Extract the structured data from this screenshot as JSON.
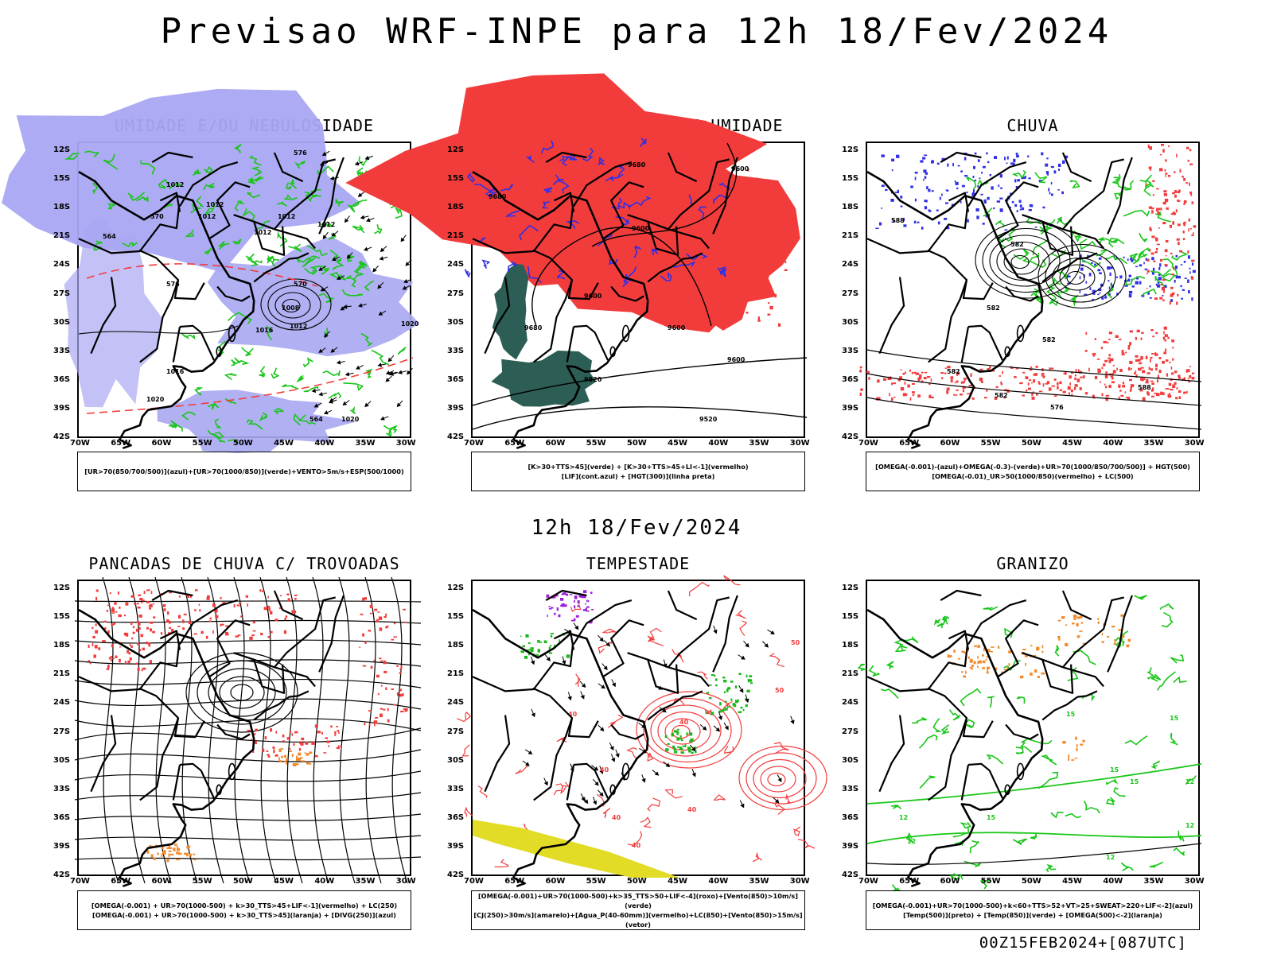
{
  "header": {
    "title": "Previsao WRF-INPE  para 12h 18/Fev/2024"
  },
  "middle": {
    "title": "12h 18/Fev/2024"
  },
  "footer": {
    "stamp": "00Z15FEB2024+[087UTC]"
  },
  "axes": {
    "lat_labels": [
      "12S",
      "15S",
      "18S",
      "21S",
      "24S",
      "27S",
      "30S",
      "33S",
      "36S",
      "39S",
      "42S"
    ],
    "lon_labels": [
      "70W",
      "65W",
      "60W",
      "55W",
      "50W",
      "45W",
      "40W",
      "35W",
      "30W"
    ]
  },
  "colors": {
    "humid_fill": "#a9a7f2",
    "green": "#19c619",
    "red": "#f23c3c",
    "blue": "#2f2fe6",
    "dark_teal": "#2d5e55",
    "orange": "#f08a2a",
    "purple": "#9b1fd8",
    "yellow": "#e3dc27"
  },
  "panels": [
    {
      "title": "UMIDADE E/OU NEBULOSIDADE",
      "legend": [
        "[UR>70(850/700/500)](azul)+[UR>70(1000/850)](verde)+VENTO>5m/s+ESP(500/1000)"
      ],
      "contour_labels": [
        "1012",
        "1012",
        "1012",
        "1012",
        "1012",
        "1012",
        "1008",
        "1012",
        "1016",
        "1020",
        "1016",
        "1020",
        "1020",
        "576",
        "576",
        "570",
        "570",
        "564",
        "564"
      ]
    },
    {
      "title": "PANCADAS POR CALOR E UMIDADE",
      "legend": [
        "[K>30+TTS>45](verde) + [K>30+TTS>45+LI<-1](vermelho)",
        "[LIF](cont.azul) + [HGT(300)](linha preta)"
      ],
      "contour_labels": [
        "9680",
        "9680",
        "9680",
        "9600",
        "9600",
        "9600",
        "9600",
        "9600",
        "9520",
        "9520"
      ]
    },
    {
      "title": "CHUVA",
      "legend": [
        "[OMEGA(-0.001)-(azul)+OMEGA(-0.3)-(verde)+UR>70(1000/850/700/500)] + HGT(500)",
        "[OMEGA(-0.01)_UR>50(1000/850)(vermelho) + LC(500)"
      ],
      "contour_labels": [
        "588",
        "582",
        "582",
        "582",
        "582",
        "582",
        "576",
        "588"
      ]
    },
    {
      "title": "PANCADAS DE CHUVA C/ TROVOADAS",
      "legend": [
        "[OMEGA(-0.001) + UR>70(1000-500) + k>30_TTS>45+LIF<-1](vermelho) + LC(250)",
        "[OMEGA(-0.001) + UR>70(1000-500) + k>30_TTS>45](laranja) + [DIVG(250)](azul)"
      ],
      "contour_labels": []
    },
    {
      "title": "TEMPESTADE",
      "legend": [
        "[OMEGA(-0.001)+UR>70(1000-500)+k>35_TTS>50+LIF<-4](roxo)+[Vento(850)>10m/s](verde)",
        "[CJ(250)>30m/s](amarelo)+[Agua_P(40-60mm)](vermelho)+LC(850)+[Vento(850)>15m/s](vetor)"
      ],
      "contour_labels": [
        "40",
        "40",
        "40",
        "40",
        "40",
        "50",
        "50",
        "40"
      ]
    },
    {
      "title": "GRANIZO",
      "legend": [
        "[OMEGA(-0.001)+UR>70(1000-500)+k<60+TTS>52+VT>25+SWEAT>220+LIF<-2](azul)",
        "[Temp(500)](preto) + [Temp(850)](verde) + [OMEGA(500)<-2](laranja)"
      ],
      "contour_labels": [
        "15",
        "15",
        "15",
        "15",
        "12",
        "12",
        "12",
        "12",
        "15",
        "12"
      ]
    }
  ]
}
